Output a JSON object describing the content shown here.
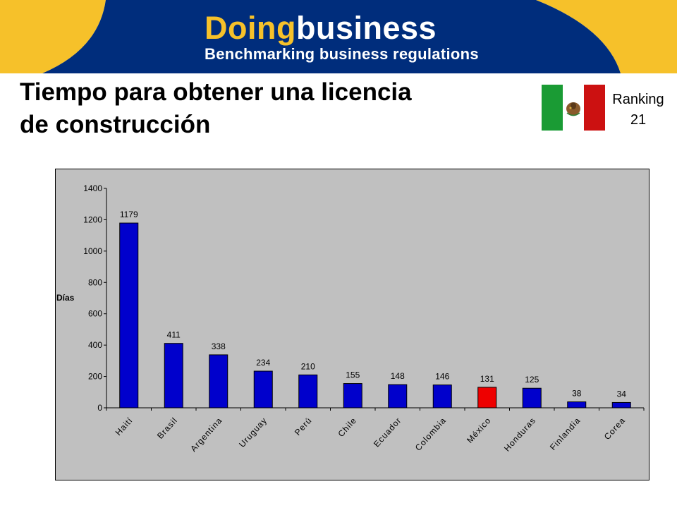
{
  "header": {
    "brand_part1": "Doing",
    "brand_part2": "business",
    "tagline": "Benchmarking business regulations"
  },
  "slide": {
    "title_line1": "Tiempo para obtener una licencia",
    "title_line2": "de construcción",
    "ranking_label": "Ranking",
    "ranking_value": "21"
  },
  "colors": {
    "banner_bg": "#002d7c",
    "banner_accent": "#f6c12a",
    "plot_bg": "#c0c0c0",
    "bar": "#0000cc",
    "highlight_bar": "#ee0000"
  },
  "chart_data": {
    "type": "bar",
    "categories": [
      "Haití",
      "Brasil",
      "Argentina",
      "Uruguay",
      "Perú",
      "Chile",
      "Ecuador",
      "Colombia",
      "México",
      "Honduras",
      "Finlandia",
      "Corea"
    ],
    "values": [
      1179,
      411,
      338,
      234,
      210,
      155,
      148,
      146,
      131,
      125,
      38,
      34
    ],
    "data_labels": [
      "1179",
      "411",
      "338",
      "234",
      "210",
      "155",
      "148",
      "146",
      "131",
      "125",
      "38",
      "34"
    ],
    "highlight": "México",
    "ylabel": "Días",
    "ylim": [
      0,
      1400
    ],
    "yticks": [
      0,
      200,
      400,
      600,
      800,
      1000,
      1200,
      1400
    ],
    "grid": false,
    "legend": "none"
  }
}
